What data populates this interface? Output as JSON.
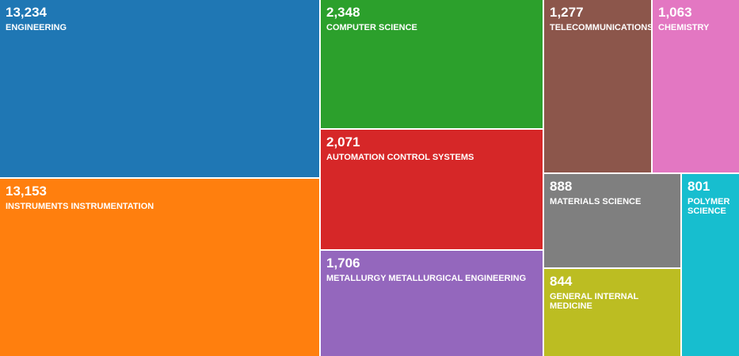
{
  "chart_data": {
    "type": "treemap",
    "items": [
      {
        "label": "ENGINEERING",
        "value": 13234,
        "display": "13,234",
        "color": "#1f77b4"
      },
      {
        "label": "INSTRUMENTS INSTRUMENTATION",
        "value": 13153,
        "display": "13,153",
        "color": "#ff7f0e"
      },
      {
        "label": "COMPUTER SCIENCE",
        "value": 2348,
        "display": "2,348",
        "color": "#2ca02c"
      },
      {
        "label": "AUTOMATION CONTROL SYSTEMS",
        "value": 2071,
        "display": "2,071",
        "color": "#d62728"
      },
      {
        "label": "METALLURGY METALLURGICAL ENGINEERING",
        "value": 1706,
        "display": "1,706",
        "color": "#9467bd"
      },
      {
        "label": "TELECOMMUNICATIONS",
        "value": 1277,
        "display": "1,277",
        "color": "#8c564b"
      },
      {
        "label": "CHEMISTRY",
        "value": 1063,
        "display": "1,063",
        "color": "#e377c2"
      },
      {
        "label": "MATERIALS SCIENCE",
        "value": 888,
        "display": "888",
        "color": "#7f7f7f"
      },
      {
        "label": "GENERAL INTERNAL MEDICINE",
        "value": 844,
        "display": "844",
        "color": "#bcbd22"
      },
      {
        "label": "POLYMER SCIENCE",
        "value": 801,
        "display": "801",
        "color": "#17becf"
      }
    ]
  }
}
